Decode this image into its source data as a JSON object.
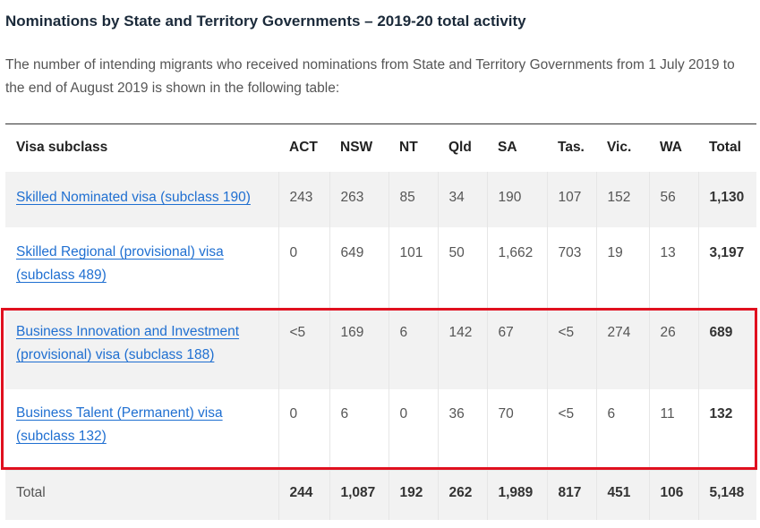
{
  "heading": "Nominations by State and Territory Governments – 2019-20 total activity",
  "intro": "The number of intending migrants who received nominations from State and Territory Governments from 1 July 2019 to the end of August 2019 is shown in the following table:",
  "table": {
    "headers": [
      "Visa subclass",
      "ACT",
      "NSW",
      "NT",
      "Qld",
      "SA",
      "Tas.",
      "Vic.",
      "WA",
      "Total"
    ],
    "rows": [
      {
        "visa": "Skilled Nominated visa (subclass 190)",
        "values": [
          "243",
          "263",
          "85",
          "34",
          "190",
          "107",
          "152",
          "56"
        ],
        "total": "1,130"
      },
      {
        "visa": "Skilled Regional (provisional) visa (subclass 489)",
        "values": [
          "0",
          "649",
          "101",
          "50",
          "1,662",
          "703",
          "19",
          "13"
        ],
        "total": "3,197"
      },
      {
        "visa": "Business Innovation and Investment (provisional) visa (subclass 188)",
        "values": [
          "<5",
          "169",
          "6",
          "142",
          "67",
          "<5",
          "274",
          "26"
        ],
        "total": "689"
      },
      {
        "visa": "Business Talent (Permanent) visa (subclass 132)",
        "values": [
          "0",
          "6",
          "0",
          "36",
          "70",
          "<5",
          "6",
          "11"
        ],
        "total": "132"
      }
    ],
    "footer": {
      "label": "Total",
      "values": [
        "244",
        "1,087",
        "192",
        "262",
        "1,989",
        "817",
        "451",
        "106"
      ],
      "total": "5,148"
    }
  },
  "colors": {
    "link": "#1f6fd1",
    "highlight": "#e0101f",
    "row_shade": "#f2f2f2"
  }
}
